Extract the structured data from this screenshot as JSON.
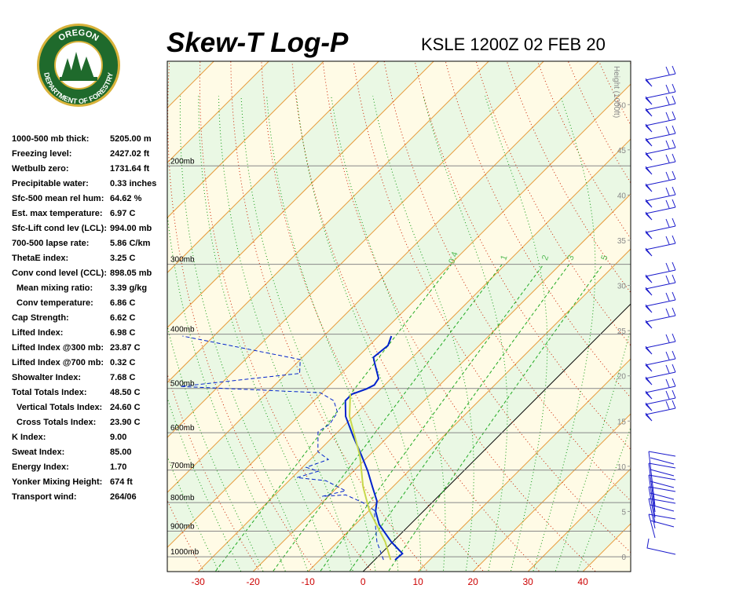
{
  "logo": {
    "top": "OREGON",
    "bottom": "DEPARTMENT OF FORESTRY"
  },
  "stats": [
    {
      "label": "1000-500 mb thick:",
      "value": "5205.00 m"
    },
    {
      "label": "Freezing level:",
      "value": "2427.02 ft"
    },
    {
      "label": "Wetbulb zero:",
      "value": "1731.64 ft"
    },
    {
      "label": "Precipitable water:",
      "value": "0.33 inches"
    },
    {
      "label": "Sfc-500 mean rel hum:",
      "value": "64.62 %"
    },
    {
      "label": "Est. max temperature:",
      "value": "6.97 C"
    },
    {
      "label": "Sfc-Lift cond lev (LCL):",
      "value": "994.00 mb"
    },
    {
      "label": "700-500 lapse rate:",
      "value": "5.86 C/km"
    },
    {
      "label": "ThetaE index:",
      "value": "3.25 C"
    },
    {
      "label": "Conv cond level (CCL):",
      "value": "898.05 mb"
    },
    {
      "label": "Mean mixing ratio:",
      "value": "3.39 g/kg",
      "indent": true
    },
    {
      "label": "Conv temperature:",
      "value": "6.86 C",
      "indent": true
    },
    {
      "label": "Cap Strength:",
      "value": "6.62 C"
    },
    {
      "label": "Lifted Index:",
      "value": "6.98 C"
    },
    {
      "label": "Lifted Index @300 mb:",
      "value": "23.87 C"
    },
    {
      "label": "Lifted Index @700 mb:",
      "value": "0.32 C"
    },
    {
      "label": "Showalter Index:",
      "value": "7.68 C"
    },
    {
      "label": "Total Totals Index:",
      "value": "48.50 C"
    },
    {
      "label": "Vertical Totals Index:",
      "value": "24.60 C",
      "indent": true
    },
    {
      "label": "Cross Totals Index:",
      "value": "23.90 C",
      "indent": true
    },
    {
      "label": "K Index:",
      "value": "9.00"
    },
    {
      "label": "Sweat Index:",
      "value": "85.00"
    },
    {
      "label": "Energy Index:",
      "value": "1.70"
    },
    {
      "label": "Yonker Mixing Height:",
      "value": "674 ft"
    },
    {
      "label": "Transport wind:",
      "value": "264/06"
    }
  ],
  "chart_data": {
    "type": "skewt",
    "title": "Skew-T Log-P",
    "subtitle": "KSLE 1200Z 02 FEB 20",
    "xlim": [
      -35.6,
      48.7
    ],
    "xticks": [
      -30,
      -20,
      -10,
      0,
      10,
      20,
      30,
      40
    ],
    "ylim": [
      1063,
      130
    ],
    "y_log": true,
    "skew": 45,
    "yticks": [
      {
        "value": 1000,
        "label": "1000mb"
      },
      {
        "value": 900,
        "label": "900mb"
      },
      {
        "value": 800,
        "label": "800mb"
      },
      {
        "value": 700,
        "label": "700mb"
      },
      {
        "value": 600,
        "label": "600mb"
      },
      {
        "value": 500,
        "label": "500mb"
      },
      {
        "value": 400,
        "label": "400mb"
      },
      {
        "value": 300,
        "label": "300mb"
      },
      {
        "value": 200,
        "label": "200mb"
      }
    ],
    "height_label": "Height (1000ft)",
    "height_lim": [
      -1.65,
      54.8
    ],
    "height_ticks": [
      0,
      5,
      10,
      15,
      20,
      25,
      30,
      35,
      40,
      45,
      50
    ],
    "mixing_ratio_labels": [
      0.4,
      1,
      2,
      3,
      5
    ],
    "series": [
      {
        "color": "#0022cc",
        "style": "solid",
        "pressure": [
          1013,
          987,
          940,
          876,
          829,
          795,
          750,
          703,
          659,
          610,
          561,
          526,
          512,
          501,
          493,
          480,
          454,
          440,
          419,
          403
        ],
        "temperature": [
          3.7,
          3.9,
          -0.3,
          -5.6,
          -8.7,
          -10.3,
          -13.7,
          -17.4,
          -21.4,
          -26.3,
          -31.4,
          -34.3,
          -34.3,
          -32.6,
          -31.9,
          -32.3,
          -35.4,
          -37.1,
          -36.6,
          -37.7
        ]
      },
      {
        "color": "#0022cc",
        "style": "dashed",
        "pressure": [
          1013,
          940,
          876,
          826,
          800,
          775,
          780,
          762,
          731,
          722,
          703,
          692,
          670,
          649,
          598,
          579,
          552,
          526,
          509,
          496,
          470,
          444,
          403
        ],
        "temperature": [
          1.6,
          -2.9,
          -6.3,
          -9.1,
          -12.6,
          -17.1,
          -21.1,
          -17.9,
          -23.3,
          -29.1,
          -26.4,
          -29.3,
          -26.7,
          -30.0,
          -33.6,
          -32.9,
          -33.6,
          -36.4,
          -40.3,
          -66.9,
          -47.6,
          -50.0,
          -75.7
        ]
      },
      {
        "color": "#c8d84a",
        "style": "solid",
        "pressure": [
          1013,
          940,
          826,
          750,
          659,
          561,
          512
        ],
        "temperature": [
          2.9,
          -1.4,
          -10.0,
          -15.4,
          -21.7,
          -30.7,
          -34.6
        ]
      }
    ]
  }
}
